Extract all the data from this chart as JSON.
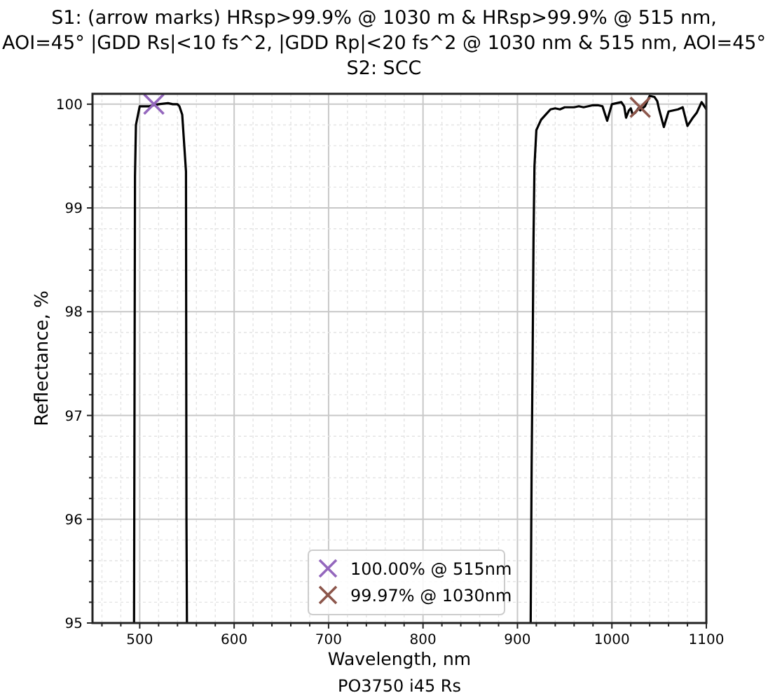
{
  "chart_data": {
    "type": "line",
    "title": "S1: (arrow marks) HRsp>99.9% @ 1030 m & HRsp>99.9% @ 515 nm,\nAOI=45° |GDD Rs|<10 fs^2, |GDD Rp|<20 fs^2  @ 1030 nm & 515 nm, AOI=45°\nS2: SCC",
    "xlabel": "Wavelength, nm",
    "ylabel": "Reflectance, %",
    "annotations": [
      "PO3750 i45 Rs"
    ],
    "xlim": [
      450,
      1100
    ],
    "ylim": [
      95,
      100.1
    ],
    "xticks": [
      {
        "value": 460,
        "label": null
      },
      {
        "value": 480,
        "label": null
      },
      500,
      {
        "value": 520,
        "label": null
      },
      {
        "value": 540,
        "label": null
      },
      {
        "value": 560,
        "label": null
      },
      {
        "value": 580,
        "label": null
      },
      600,
      {
        "value": 620,
        "label": null
      },
      {
        "value": 640,
        "label": null
      },
      {
        "value": 660,
        "label": null
      },
      {
        "value": 680,
        "label": null
      },
      700,
      {
        "value": 720,
        "label": null
      },
      {
        "value": 740,
        "label": null
      },
      {
        "value": 760,
        "label": null
      },
      {
        "value": 780,
        "label": null
      },
      800,
      {
        "value": 820,
        "label": null
      },
      {
        "value": 840,
        "label": null
      },
      {
        "value": 860,
        "label": null
      },
      {
        "value": 880,
        "label": null
      },
      900,
      {
        "value": 920,
        "label": null
      },
      {
        "value": 940,
        "label": null
      },
      {
        "value": 960,
        "label": null
      },
      {
        "value": 980,
        "label": null
      },
      1000,
      {
        "value": 1020,
        "label": null
      },
      {
        "value": 1040,
        "label": null
      },
      {
        "value": 1060,
        "label": null
      },
      {
        "value": 1080,
        "label": null
      },
      1100
    ],
    "yticks": [
      95,
      {
        "value": 95.2,
        "label": null
      },
      {
        "value": 95.4,
        "label": null
      },
      {
        "value": 95.6,
        "label": null
      },
      {
        "value": 95.8,
        "label": null
      },
      96,
      {
        "value": 96.2,
        "label": null
      },
      {
        "value": 96.4,
        "label": null
      },
      {
        "value": 96.6,
        "label": null
      },
      {
        "value": 96.8,
        "label": null
      },
      97,
      {
        "value": 97.2,
        "label": null
      },
      {
        "value": 97.4,
        "label": null
      },
      {
        "value": 97.6,
        "label": null
      },
      {
        "value": 97.8,
        "label": null
      },
      98,
      {
        "value": 98.2,
        "label": null
      },
      {
        "value": 98.4,
        "label": null
      },
      {
        "value": 98.6,
        "label": null
      },
      {
        "value": 98.8,
        "label": null
      },
      99,
      {
        "value": 99.2,
        "label": null
      },
      {
        "value": 99.4,
        "label": null
      },
      {
        "value": 99.6,
        "label": null
      },
      {
        "value": 99.8,
        "label": null
      },
      100
    ],
    "grid": true,
    "legend": "bottom",
    "line_style": "solid",
    "series": [
      {
        "color": "#000000",
        "x": [
          494,
          495,
          496,
          500,
          510,
          520,
          530,
          535,
          540,
          542,
          545,
          549,
          549.5,
          550
        ],
        "values": [
          95,
          99.3,
          99.8,
          99.98,
          99.98,
          100.0,
          100.01,
          100.0,
          100.0,
          99.98,
          99.9,
          99.35,
          96,
          95
        ]
      },
      {
        "color": "#000000",
        "x": [
          914,
          915,
          916,
          917,
          918,
          920,
          925,
          930,
          935,
          940,
          945,
          950,
          955,
          960,
          965,
          970,
          975,
          980,
          985,
          990,
          995,
          1000,
          1005,
          1010,
          1013,
          1015,
          1018,
          1020,
          1022,
          1025,
          1028,
          1030,
          1035,
          1040,
          1045,
          1048,
          1050,
          1055,
          1060,
          1065,
          1070,
          1075,
          1080,
          1085,
          1090,
          1095,
          1100
        ],
        "values": [
          95,
          96.5,
          97.5,
          98.7,
          99.4,
          99.75,
          99.85,
          99.9,
          99.95,
          99.96,
          99.95,
          99.97,
          99.97,
          99.97,
          99.98,
          99.97,
          99.98,
          99.99,
          99.99,
          99.98,
          99.84,
          100.0,
          100.01,
          100.02,
          99.98,
          99.87,
          99.94,
          99.96,
          99.9,
          99.92,
          99.96,
          99.94,
          99.98,
          100.08,
          100.07,
          100.03,
          99.95,
          99.78,
          99.93,
          99.94,
          99.95,
          99.97,
          99.79,
          99.86,
          99.92,
          100.02,
          99.95
        ]
      },
      {
        "type": "scatter",
        "name": "100.00% @ 515nm",
        "color": "#9467bd",
        "marker": "cross",
        "x": [
          515
        ],
        "values": [
          100.0
        ]
      },
      {
        "type": "scatter",
        "name": "99.97% @ 1030nm",
        "color": "#8c564b",
        "marker": "cross",
        "x": [
          1030
        ],
        "values": [
          99.97
        ]
      }
    ]
  }
}
